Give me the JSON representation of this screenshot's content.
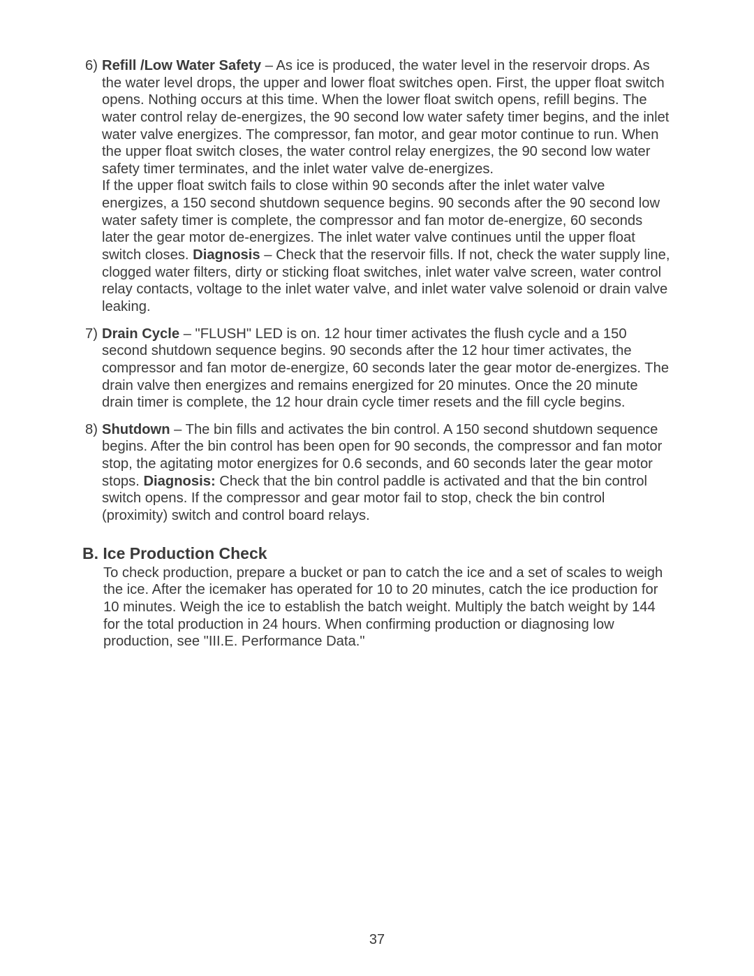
{
  "items": [
    {
      "num": "6)",
      "title": "Refill /Low Water Safety",
      "para1_rest": " – As ice is produced, the water level in the reservoir drops. As the water level drops, the upper and lower float switches open. First, the upper float switch opens. Nothing occurs at this time. When the lower float switch opens, refill begins. The water control relay de-energizes, the 90 second low water safety timer begins, and the inlet water valve energizes. The compressor, fan motor, and gear motor continue to run. When the upper float switch closes, the water control relay energizes, the 90 second low water safety timer terminates, and the inlet water valve de-energizes.",
      "para2_pre": "If the upper float switch fails to close within 90 seconds after the inlet water valve energizes, a 150 second shutdown sequence begins. 90 seconds after the 90 second low water safety timer is complete, the compressor and fan motor de-energize, 60 seconds later the gear motor de-energizes. The inlet water valve continues until the upper float switch closes. ",
      "diag_label": "Diagnosis",
      "para2_post": " – Check that the reservoir fills. If not, check the water supply line, clogged water filters, dirty or sticking float switches, inlet water valve screen, water control relay contacts, voltage to the inlet water valve, and inlet water valve solenoid or drain valve leaking."
    },
    {
      "num": "7)",
      "title": "Drain Cycle",
      "para1_rest": " – \"FLUSH\" LED is on. 12 hour timer activates the flush cycle and a 150 second shutdown sequence begins. 90 seconds after the 12 hour timer activates, the compressor and fan motor de-energize, 60 seconds later the gear motor de-energizes. The drain valve then energizes and remains energized for 20 minutes. Once the 20 minute drain timer is complete, the 12 hour drain cycle timer resets and the fill cycle begins."
    },
    {
      "num": "8)",
      "title": "Shutdown",
      "para1_rest": " – The bin fills and activates the bin control. A 150 second shutdown sequence begins. After the bin control has been open for 90 seconds, the compressor and fan motor stop, the agitating motor energizes for 0.6 seconds, and 60 seconds later the gear motor stops. ",
      "diag_label": "Diagnosis:",
      "para1_post": " Check that the bin control paddle is activated and that the bin control switch opens. If the compressor and gear motor fail to stop, check the bin control (proximity) switch and control board relays."
    }
  ],
  "section_h": "B. Ice Production Check",
  "section_body": "To check production, prepare a bucket or pan to catch the ice and a set of scales to weigh the ice. After the icemaker has operated for 10 to 20 minutes, catch the ice production for 10 minutes. Weigh the ice to establish the batch weight. Multiply the batch weight by 144 for the total production in 24 hours. When confirming production or diagnosing low production, see \"III.E. Performance Data.\"",
  "page_num": "37"
}
